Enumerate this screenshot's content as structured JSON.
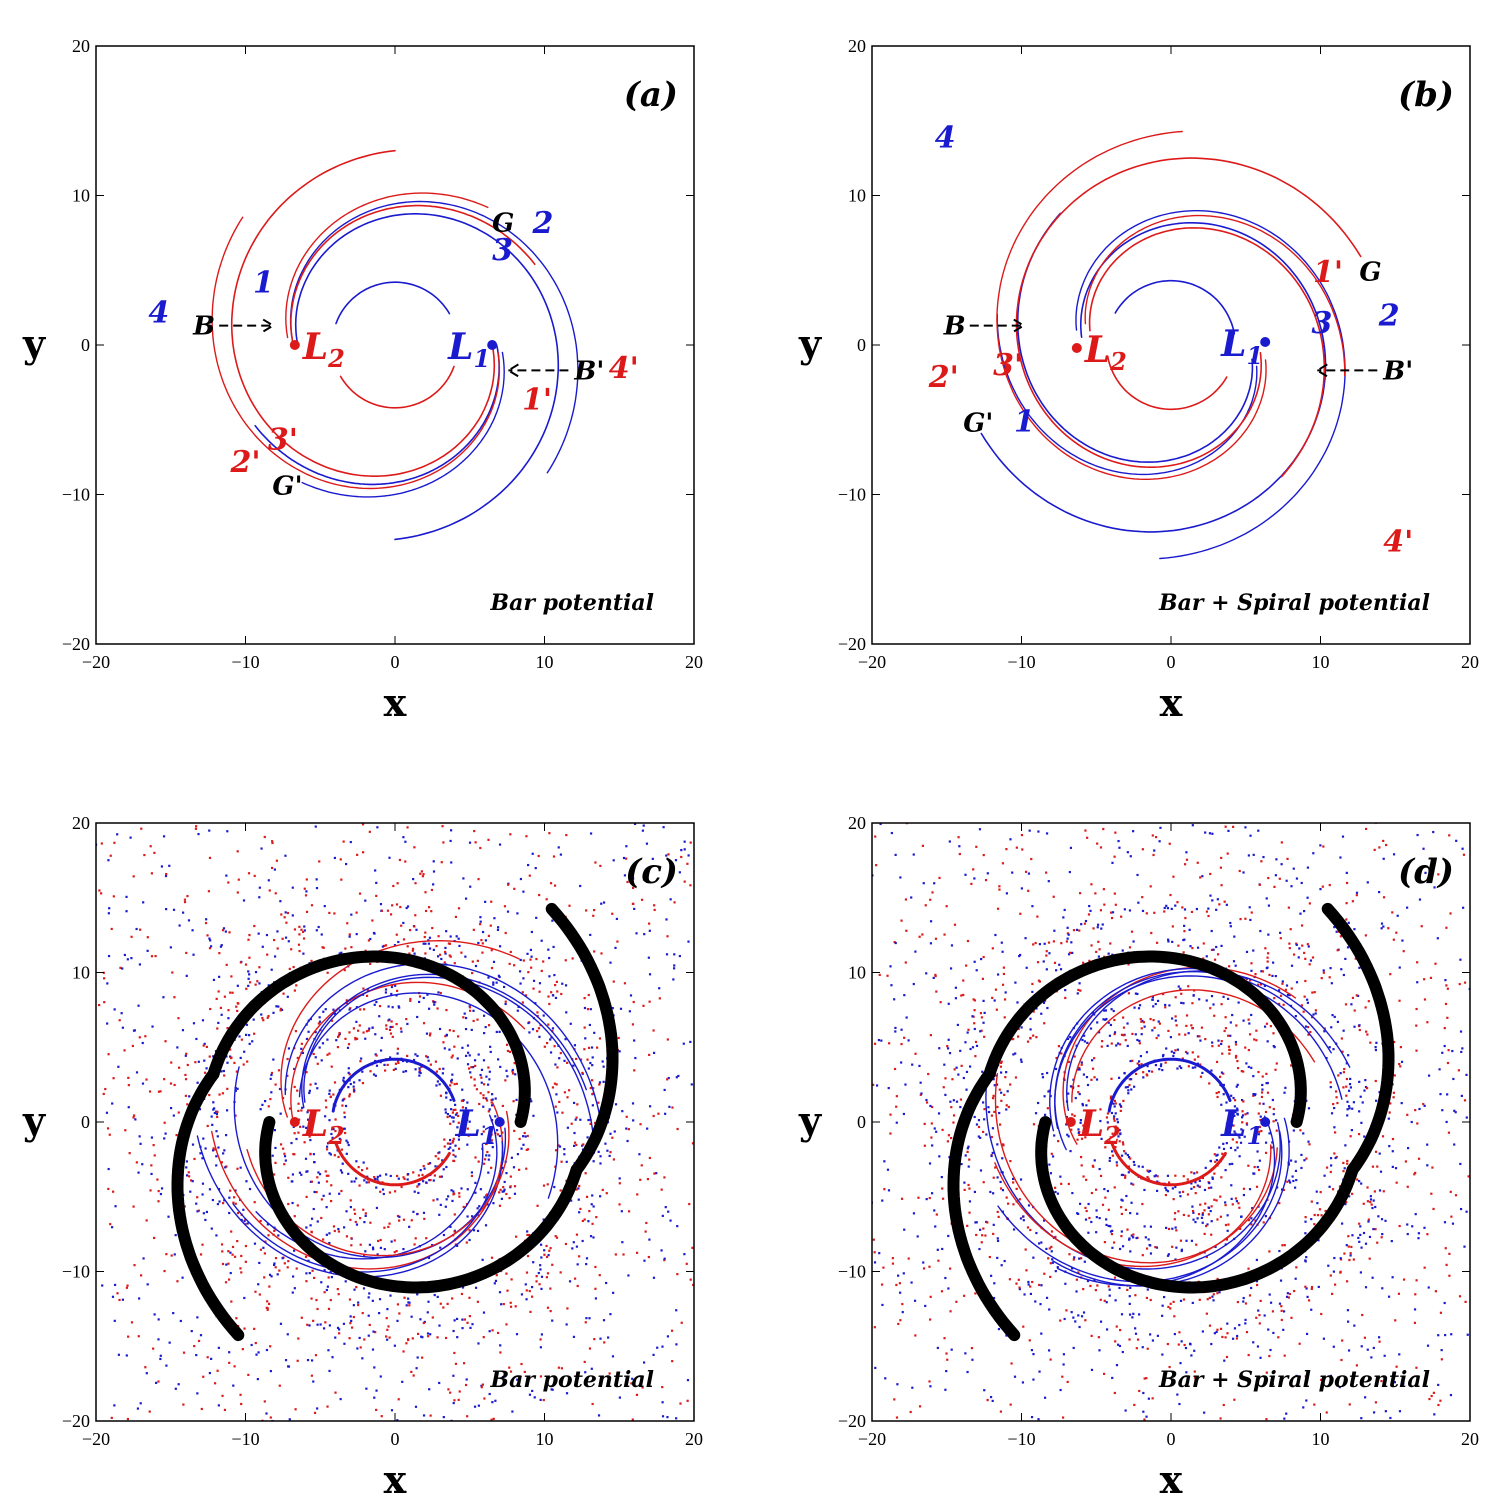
{
  "colors": {
    "blue": "#1a1acf",
    "red": "#dd1a1a",
    "black": "#000000"
  },
  "chart_data": [
    {
      "type": "scatter",
      "panel": "(a)",
      "xlabel": "x",
      "ylabel": "y",
      "xlim": [
        -20,
        20
      ],
      "ylim": [
        -20,
        20
      ],
      "xticks": [
        "-20",
        "-10",
        "0",
        "10",
        "20"
      ],
      "yticks": [
        "-20",
        "-10",
        "0",
        "10",
        "20"
      ],
      "caption": "Bar potential",
      "lagrange_points": [
        {
          "name": "L1",
          "label": "L",
          "sub": "1",
          "x": 6.5,
          "y": 0,
          "color": "#1a1acf"
        },
        {
          "name": "L2",
          "label": "L",
          "sub": "2",
          "x": -6.7,
          "y": 0,
          "color": "#dd1a1a"
        }
      ],
      "labels": [
        {
          "text": "1",
          "x": -9.5,
          "y": 3.5,
          "color": "#1a1acf"
        },
        {
          "text": "2",
          "x": 9.2,
          "y": 7.5,
          "color": "#1a1acf"
        },
        {
          "text": "3",
          "x": 6.5,
          "y": 5.7,
          "color": "#1a1acf"
        },
        {
          "text": "4",
          "x": -16.5,
          "y": 1.5,
          "color": "#1a1acf"
        },
        {
          "text": "1'",
          "x": 8.5,
          "y": -4.3,
          "color": "#dd1a1a"
        },
        {
          "text": "2'",
          "x": -11.0,
          "y": -8.5,
          "color": "#dd1a1a"
        },
        {
          "text": "3'",
          "x": -8.5,
          "y": -7.0,
          "color": "#dd1a1a"
        },
        {
          "text": "4'",
          "x": 14.3,
          "y": -2.2,
          "color": "#dd1a1a"
        },
        {
          "text": "G",
          "x": 6.5,
          "y": 7.6,
          "color": "#000000"
        },
        {
          "text": "G'",
          "x": -8.2,
          "y": -10.0,
          "color": "#000000"
        }
      ],
      "arrows": [
        {
          "text": "B",
          "dir": "right",
          "x": -13.5,
          "y": 1.3
        },
        {
          "text": "B'",
          "dir": "left",
          "x": 12.0,
          "y": -1.7
        }
      ],
      "curves": {
        "blue": [
          {
            "type": "spiral",
            "rot": 180,
            "r_start": 6.5,
            "r_end": 13.0,
            "sweep": 270
          },
          {
            "type": "spiral",
            "rot": 0,
            "r_start": 6.8,
            "r_end": 10.8,
            "sweep": 150
          },
          {
            "type": "arc",
            "r": 4.2,
            "a0": 30,
            "a1": 160
          }
        ],
        "red": [
          {
            "type": "spiral",
            "rot": 0,
            "r_start": 6.5,
            "r_end": 13.0,
            "sweep": 270
          },
          {
            "type": "spiral",
            "rot": 180,
            "r_start": 6.8,
            "r_end": 10.8,
            "sweep": 150
          },
          {
            "type": "arc",
            "r": 4.2,
            "a0": 210,
            "a1": 340
          }
        ]
      }
    },
    {
      "type": "scatter",
      "panel": "(b)",
      "xlabel": "x",
      "ylabel": "y",
      "xlim": [
        -20,
        20
      ],
      "ylim": [
        -20,
        20
      ],
      "xticks": [
        "-20",
        "-10",
        "0",
        "10",
        "20"
      ],
      "yticks": [
        "-20",
        "-10",
        "0",
        "10",
        "20"
      ],
      "caption": "Bar + Spiral potential",
      "lagrange_points": [
        {
          "name": "L1",
          "label": "L",
          "sub": "1",
          "x": 6.3,
          "y": 0.2,
          "color": "#1a1acf"
        },
        {
          "name": "L2",
          "label": "L",
          "sub": "2",
          "x": -6.3,
          "y": -0.2,
          "color": "#dd1a1a"
        }
      ],
      "labels": [
        {
          "text": "1",
          "x": -10.5,
          "y": -5.8,
          "color": "#1a1acf"
        },
        {
          "text": "2",
          "x": 13.9,
          "y": 1.3,
          "color": "#1a1acf"
        },
        {
          "text": "3",
          "x": 9.4,
          "y": 0.8,
          "color": "#1a1acf"
        },
        {
          "text": "4",
          "x": -15.8,
          "y": 13.2,
          "color": "#1a1acf"
        },
        {
          "text": "1'",
          "x": 9.5,
          "y": 4.2,
          "color": "#dd1a1a"
        },
        {
          "text": "2'",
          "x": -16.2,
          "y": -2.8,
          "color": "#dd1a1a"
        },
        {
          "text": "3'",
          "x": -11.9,
          "y": -2.0,
          "color": "#dd1a1a"
        },
        {
          "text": "4'",
          "x": 14.2,
          "y": -13.8,
          "color": "#dd1a1a"
        },
        {
          "text": "G",
          "x": 12.6,
          "y": 4.3,
          "color": "#000000"
        },
        {
          "text": "G'",
          "x": -13.9,
          "y": -5.8,
          "color": "#000000"
        }
      ],
      "arrows": [
        {
          "text": "B",
          "dir": "right",
          "x": -15.2,
          "y": 1.3
        },
        {
          "text": "B'",
          "dir": "left",
          "x": 14.2,
          "y": -1.7
        }
      ],
      "curves": {
        "blue": [
          {
            "type": "spiral",
            "rot": 185,
            "r_start": 6.0,
            "r_end": 14.0,
            "sweep": 330
          },
          {
            "type": "spiral",
            "rot": 10,
            "r_start": 5.5,
            "r_end": 11.5,
            "sweep": 220
          },
          {
            "type": "arc",
            "r": 4.3,
            "a0": 10,
            "a1": 150
          }
        ],
        "red": [
          {
            "type": "spiral",
            "rot": 5,
            "r_start": 6.0,
            "r_end": 14.0,
            "sweep": 330
          },
          {
            "type": "spiral",
            "rot": 190,
            "r_start": 5.5,
            "r_end": 11.5,
            "sweep": 220
          },
          {
            "type": "arc",
            "r": 4.3,
            "a0": 190,
            "a1": 330
          }
        ]
      }
    },
    {
      "type": "scatter",
      "panel": "(c)",
      "xlabel": "x",
      "ylabel": "y",
      "xlim": [
        -20,
        20
      ],
      "ylim": [
        -20,
        20
      ],
      "xticks": [
        "-20",
        "-10",
        "0",
        "10",
        "20"
      ],
      "yticks": [
        "-20",
        "-10",
        "0",
        "10",
        "20"
      ],
      "caption": "Bar potential",
      "lagrange_points": [
        {
          "name": "L1",
          "label": "L",
          "sub": "1",
          "x": 7.0,
          "y": 0,
          "color": "#1a1acf"
        },
        {
          "name": "L2",
          "label": "L",
          "sub": "2",
          "x": -6.7,
          "y": 0,
          "color": "#dd1a1a"
        }
      ],
      "spiral_arms": [
        {
          "rot": 0,
          "r_start": 8.0,
          "r_end": 20.0,
          "sweep": 275
        },
        {
          "rot": 180,
          "r_start": 8.0,
          "r_end": 20.0,
          "sweep": 275
        }
      ],
      "cloud": {
        "rings": [
          4.2,
          6.5,
          8.5,
          11.5,
          12.5,
          14.0
        ],
        "scatter_r": [
          14,
          28
        ]
      }
    },
    {
      "type": "scatter",
      "panel": "(d)",
      "xlabel": "x",
      "ylabel": "y",
      "xlim": [
        -20,
        20
      ],
      "ylim": [
        -20,
        20
      ],
      "xticks": [
        "-20",
        "-10",
        "0",
        "10",
        "20"
      ],
      "yticks": [
        "-20",
        "-10",
        "0",
        "10",
        "20"
      ],
      "caption": "Bar + Spiral potential",
      "lagrange_points": [
        {
          "name": "L1",
          "label": "L",
          "sub": "1",
          "x": 6.3,
          "y": 0,
          "color": "#1a1acf"
        },
        {
          "name": "L2",
          "label": "L",
          "sub": "2",
          "x": -6.7,
          "y": 0,
          "color": "#dd1a1a"
        }
      ],
      "spiral_arms": [
        {
          "rot": 0,
          "r_start": 8.0,
          "r_end": 20.0,
          "sweep": 275
        },
        {
          "rot": 180,
          "r_start": 8.0,
          "r_end": 20.0,
          "sweep": 275
        }
      ],
      "cloud": {
        "rings": [
          4.3,
          6.5,
          8.5,
          11.5,
          12.5,
          14.5
        ],
        "scatter_r": [
          14,
          28
        ]
      }
    }
  ]
}
